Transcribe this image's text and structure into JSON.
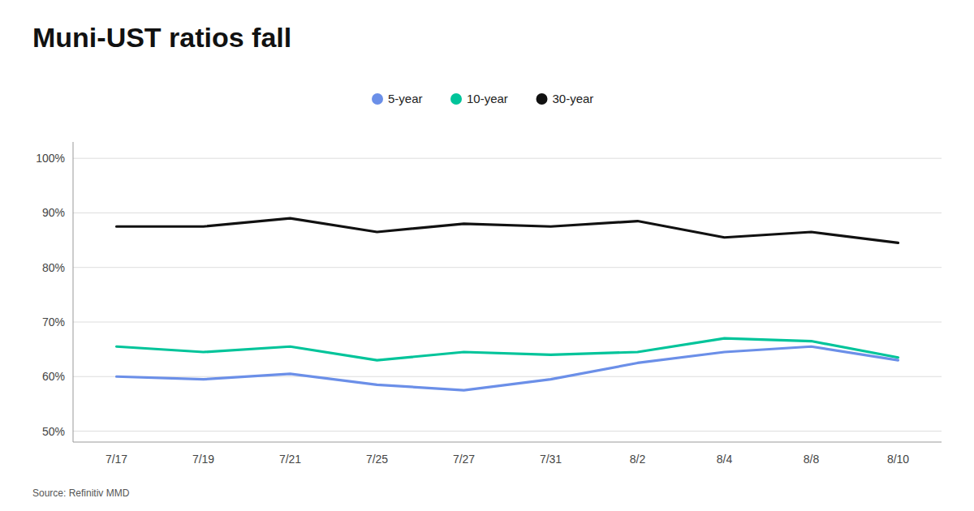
{
  "chart_data": {
    "type": "line",
    "title": "Muni-UST ratios fall",
    "source": "Source: Refinitiv MMD",
    "categories": [
      "7/17",
      "7/19",
      "7/21",
      "7/25",
      "7/27",
      "7/31",
      "8/2",
      "8/4",
      "8/8",
      "8/10"
    ],
    "series": [
      {
        "name": "5-year",
        "color": "#6B8FE8",
        "values": [
          60.0,
          59.5,
          60.5,
          58.5,
          57.5,
          59.5,
          62.5,
          64.5,
          65.5,
          63.0
        ]
      },
      {
        "name": "10-year",
        "color": "#00C49A",
        "values": [
          65.5,
          64.5,
          65.5,
          63.0,
          64.5,
          64.0,
          64.5,
          67.0,
          66.5,
          63.5
        ]
      },
      {
        "name": "30-year",
        "color": "#111111",
        "values": [
          87.5,
          87.5,
          89.0,
          86.5,
          88.0,
          87.5,
          88.5,
          85.5,
          86.5,
          84.5
        ]
      }
    ],
    "ylim": [
      48,
      103
    ],
    "yticks": [
      {
        "value": 50,
        "label": "50%"
      },
      {
        "value": 60,
        "label": "60%"
      },
      {
        "value": 70,
        "label": "70%"
      },
      {
        "value": 80,
        "label": "80%"
      },
      {
        "value": 90,
        "label": "90%"
      },
      {
        "value": 100,
        "label": "100%"
      }
    ],
    "grid": true,
    "legend": "top"
  }
}
